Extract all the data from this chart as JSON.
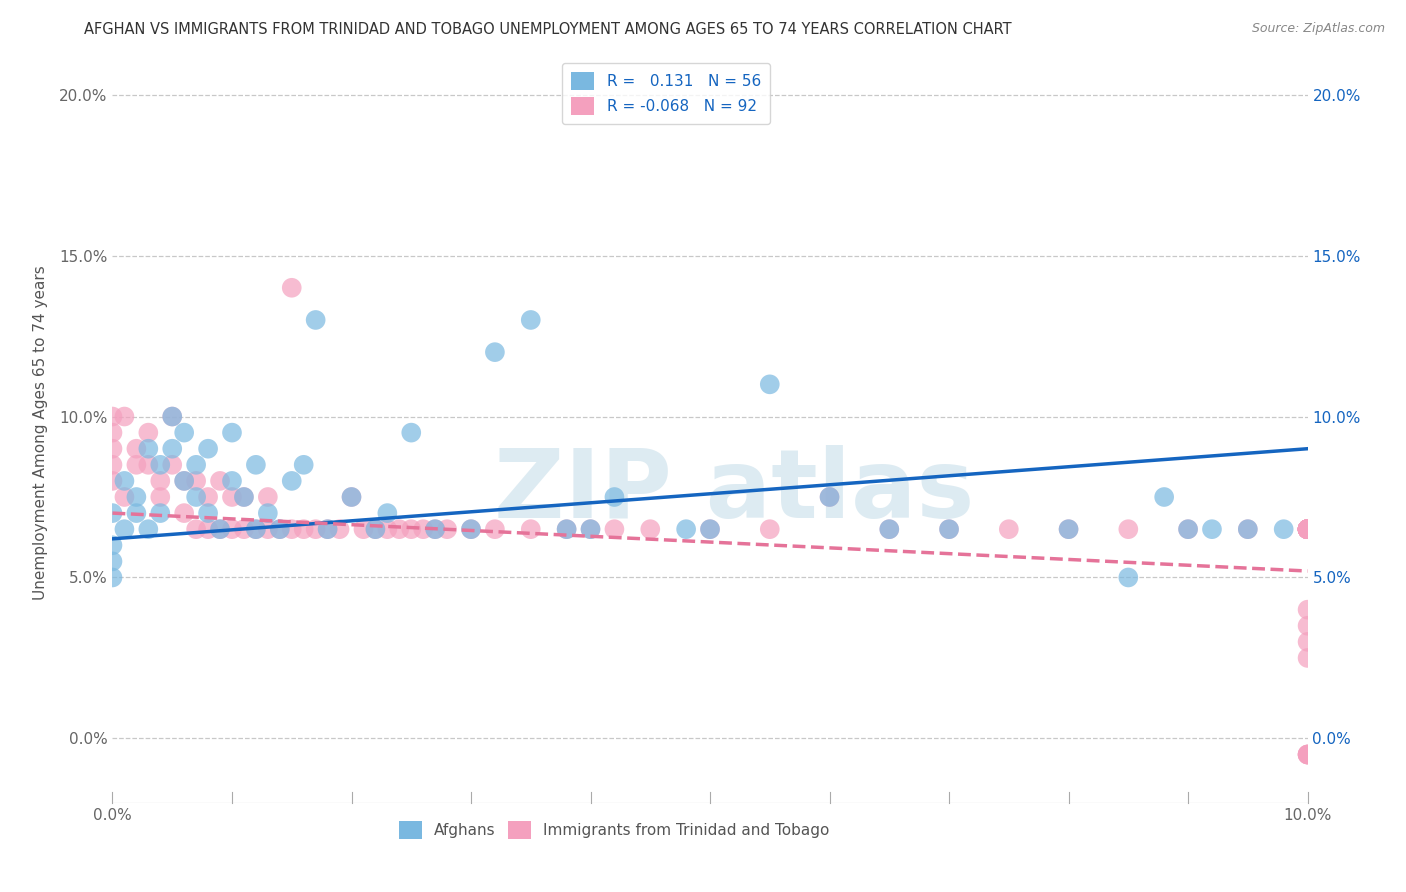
{
  "title": "AFGHAN VS IMMIGRANTS FROM TRINIDAD AND TOBAGO UNEMPLOYMENT AMONG AGES 65 TO 74 YEARS CORRELATION CHART",
  "source": "Source: ZipAtlas.com",
  "ylabel": "Unemployment Among Ages 65 to 74 years",
  "xmin": 0.0,
  "xmax": 0.1,
  "ymin": -0.02,
  "ymax": 0.21,
  "Afghan_R": 0.131,
  "Afghan_N": 56,
  "TT_R": -0.068,
  "TT_N": 92,
  "legend_afghan": "Afghans",
  "legend_tt": "Immigrants from Trinidad and Tobago",
  "afghan_color": "#7ab8e0",
  "tt_color": "#f4a0be",
  "afghan_line_color": "#1565c0",
  "tt_line_color": "#e57399",
  "background_color": "#ffffff",
  "grid_color": "#c8c8c8",
  "afghan_line_y0": 0.062,
  "afghan_line_y1": 0.09,
  "tt_line_y0": 0.07,
  "tt_line_y1": 0.052,
  "Afghan_scatter_x": [
    0.0,
    0.0,
    0.0,
    0.0,
    0.001,
    0.001,
    0.002,
    0.002,
    0.003,
    0.003,
    0.004,
    0.004,
    0.005,
    0.005,
    0.006,
    0.006,
    0.007,
    0.007,
    0.008,
    0.008,
    0.009,
    0.01,
    0.01,
    0.011,
    0.012,
    0.012,
    0.013,
    0.014,
    0.015,
    0.016,
    0.017,
    0.018,
    0.02,
    0.022,
    0.023,
    0.025,
    0.027,
    0.03,
    0.032,
    0.035,
    0.038,
    0.04,
    0.042,
    0.048,
    0.05,
    0.055,
    0.06,
    0.065,
    0.07,
    0.08,
    0.085,
    0.088,
    0.09,
    0.092,
    0.095,
    0.098
  ],
  "Afghan_scatter_y": [
    0.06,
    0.055,
    0.05,
    0.07,
    0.065,
    0.08,
    0.07,
    0.075,
    0.065,
    0.09,
    0.085,
    0.07,
    0.1,
    0.09,
    0.08,
    0.095,
    0.085,
    0.075,
    0.09,
    0.07,
    0.065,
    0.08,
    0.095,
    0.075,
    0.065,
    0.085,
    0.07,
    0.065,
    0.08,
    0.085,
    0.13,
    0.065,
    0.075,
    0.065,
    0.07,
    0.095,
    0.065,
    0.065,
    0.12,
    0.13,
    0.065,
    0.065,
    0.075,
    0.065,
    0.065,
    0.11,
    0.075,
    0.065,
    0.065,
    0.065,
    0.05,
    0.075,
    0.065,
    0.065,
    0.065,
    0.065
  ],
  "TT_scatter_x": [
    0.0,
    0.0,
    0.0,
    0.0,
    0.0,
    0.001,
    0.001,
    0.002,
    0.002,
    0.003,
    0.003,
    0.004,
    0.004,
    0.005,
    0.005,
    0.006,
    0.006,
    0.007,
    0.007,
    0.008,
    0.008,
    0.009,
    0.009,
    0.01,
    0.01,
    0.011,
    0.011,
    0.012,
    0.013,
    0.013,
    0.014,
    0.015,
    0.015,
    0.016,
    0.017,
    0.018,
    0.019,
    0.02,
    0.021,
    0.022,
    0.023,
    0.024,
    0.025,
    0.026,
    0.027,
    0.028,
    0.03,
    0.032,
    0.035,
    0.038,
    0.04,
    0.042,
    0.045,
    0.05,
    0.055,
    0.06,
    0.065,
    0.07,
    0.075,
    0.08,
    0.085,
    0.09,
    0.095,
    0.1,
    0.1,
    0.1,
    0.1,
    0.1,
    0.1,
    0.1,
    0.1,
    0.1,
    0.1,
    0.1,
    0.1,
    0.1,
    0.1,
    0.1,
    0.1,
    0.1,
    0.1,
    0.1,
    0.1,
    0.1,
    0.1,
    0.1,
    0.1,
    0.1,
    0.1,
    0.1,
    0.1,
    0.1
  ],
  "TT_scatter_y": [
    0.1,
    0.095,
    0.09,
    0.085,
    0.08,
    0.1,
    0.075,
    0.09,
    0.085,
    0.085,
    0.095,
    0.08,
    0.075,
    0.085,
    0.1,
    0.07,
    0.08,
    0.065,
    0.08,
    0.065,
    0.075,
    0.065,
    0.08,
    0.065,
    0.075,
    0.065,
    0.075,
    0.065,
    0.065,
    0.075,
    0.065,
    0.14,
    0.065,
    0.065,
    0.065,
    0.065,
    0.065,
    0.075,
    0.065,
    0.065,
    0.065,
    0.065,
    0.065,
    0.065,
    0.065,
    0.065,
    0.065,
    0.065,
    0.065,
    0.065,
    0.065,
    0.065,
    0.065,
    0.065,
    0.065,
    0.075,
    0.065,
    0.065,
    0.065,
    0.065,
    0.065,
    0.065,
    0.065,
    0.065,
    0.065,
    0.065,
    0.065,
    0.065,
    0.065,
    0.065,
    0.065,
    0.065,
    0.065,
    0.065,
    0.065,
    0.065,
    0.065,
    0.065,
    0.065,
    0.065,
    0.065,
    0.065,
    0.065,
    0.065,
    0.04,
    0.035,
    0.03,
    0.025,
    -0.005,
    -0.005,
    -0.005,
    -0.005
  ]
}
